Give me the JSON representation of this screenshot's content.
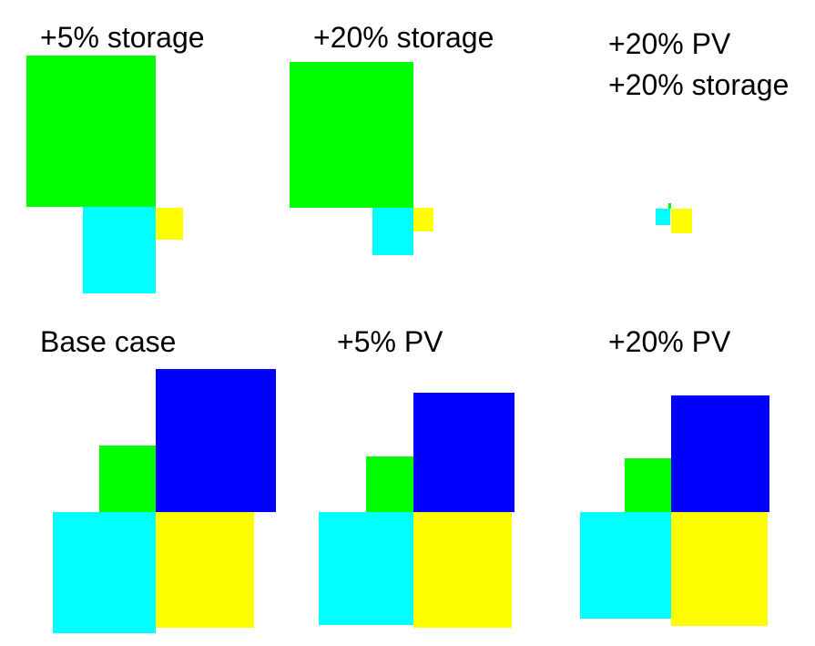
{
  "colors": {
    "green": "#00ff00",
    "blue": "#0000ff",
    "cyan": "#00ffff",
    "yellow": "#ffff00",
    "text": "#000000",
    "background": "#ffffff"
  },
  "panels": [
    {
      "id": "storage-5",
      "title_lines": [
        "+5% storage"
      ]
    },
    {
      "id": "storage-20",
      "title_lines": [
        "+20% storage"
      ]
    },
    {
      "id": "pv-20-storage-20",
      "title_lines": [
        "+20% PV",
        "+20% storage"
      ]
    },
    {
      "id": "base-case",
      "title_lines": [
        "Base case"
      ]
    },
    {
      "id": "pv-5",
      "title_lines": [
        "+5% PV"
      ]
    },
    {
      "id": "pv-20",
      "title_lines": [
        "+20% PV"
      ]
    }
  ]
}
